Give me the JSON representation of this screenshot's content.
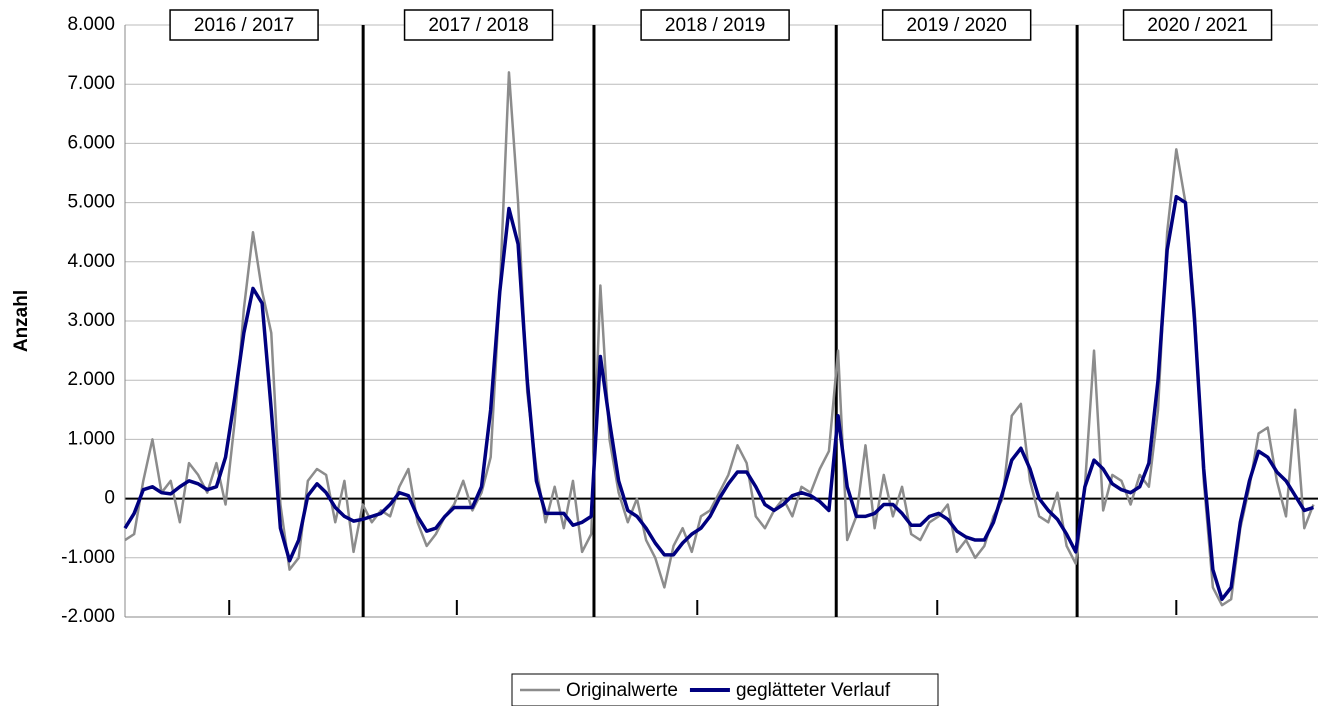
{
  "chart_data": {
    "type": "line",
    "y_label": "Anzahl",
    "seasons": [
      "2016 / 2017",
      "2017 / 2018",
      "2018 / 2019",
      "2019 / 2020",
      "2020 / 2021"
    ],
    "season_boundaries": [
      52.1,
      102.6,
      155.6,
      208.3
    ],
    "x": [
      0,
      2,
      4,
      6,
      8,
      10,
      12,
      14,
      16,
      18,
      20,
      22,
      24,
      26,
      28,
      30,
      32,
      34,
      36,
      38,
      40,
      42,
      44,
      46,
      48,
      50,
      52,
      54,
      56,
      58,
      60,
      62,
      64,
      66,
      68,
      70,
      72,
      74,
      76,
      78,
      80,
      82,
      84,
      86,
      88,
      90,
      92,
      94,
      96,
      98,
      100,
      102,
      104,
      106,
      108,
      110,
      112,
      114,
      116,
      118,
      120,
      122,
      124,
      126,
      128,
      130,
      132,
      134,
      136,
      138,
      140,
      142,
      144,
      146,
      148,
      150,
      152,
      154,
      156,
      158,
      160,
      162,
      164,
      166,
      168,
      170,
      172,
      174,
      176,
      178,
      180,
      182,
      184,
      186,
      188,
      190,
      192,
      194,
      196,
      198,
      200,
      202,
      204,
      206,
      208,
      210,
      212,
      214,
      216,
      218,
      220,
      222,
      224,
      226,
      228,
      230,
      232,
      234,
      236,
      238,
      240,
      242,
      244,
      246,
      248,
      250,
      252,
      254,
      256,
      258,
      260
    ],
    "xlim": [
      0,
      261
    ],
    "xticks": [
      22.8,
      72.6,
      125.2,
      177.7,
      230
    ],
    "ylim": [
      -2000,
      8000
    ],
    "yticks": [
      {
        "value": -2000,
        "label": "-2.000"
      },
      {
        "value": -1000,
        "label": "-1.000"
      },
      0,
      {
        "value": 1000,
        "label": "1.000"
      },
      {
        "value": 2000,
        "label": "2.000"
      },
      {
        "value": 3000,
        "label": "3.000"
      },
      {
        "value": 4000,
        "label": "4.000"
      },
      {
        "value": 5000,
        "label": "5.000"
      },
      {
        "value": 6000,
        "label": "6.000"
      },
      {
        "value": 7000,
        "label": "7.000"
      },
      {
        "value": 8000,
        "label": "8.000"
      }
    ],
    "grid": true,
    "legend": "bottom",
    "series": [
      {
        "name": "Originalwerte",
        "color": "#8c8c8c",
        "values": [
          -700,
          -600,
          300,
          1000,
          100,
          300,
          -400,
          600,
          400,
          100,
          600,
          -100,
          1300,
          3200,
          4500,
          3500,
          2800,
          -100,
          -1200,
          -1000,
          300,
          500,
          400,
          -400,
          300,
          -900,
          -100,
          -400,
          -200,
          -300,
          200,
          500,
          -400,
          -800,
          -600,
          -300,
          -100,
          300,
          -200,
          100,
          700,
          3500,
          7200,
          5000,
          1800,
          500,
          -400,
          200,
          -500,
          300,
          -900,
          -600,
          3600,
          1000,
          100,
          -400,
          0,
          -700,
          -1000,
          -1500,
          -800,
          -500,
          -900,
          -300,
          -200,
          100,
          400,
          900,
          600,
          -300,
          -500,
          -200,
          0,
          -300,
          200,
          100,
          500,
          800,
          2500,
          -700,
          -300,
          900,
          -500,
          400,
          -300,
          200,
          -600,
          -700,
          -400,
          -300,
          -100,
          -900,
          -700,
          -1000,
          -800,
          -300,
          0,
          1400,
          1600,
          300,
          -300,
          -400,
          100,
          -800,
          -1100,
          200,
          2500,
          -200,
          400,
          300,
          -100,
          400,
          200,
          1500,
          4500,
          5900,
          5000,
          3200,
          300,
          -1500,
          -1800,
          -1700,
          -500,
          200,
          1100,
          1200,
          300,
          -300,
          1500,
          -500,
          -100
        ]
      },
      {
        "name": "geglätteter Verlauf",
        "color": "#00007f",
        "values": [
          -500,
          -250,
          150,
          200,
          100,
          80,
          200,
          300,
          250,
          150,
          200,
          700,
          1700,
          2800,
          3550,
          3300,
          1500,
          -500,
          -1050,
          -700,
          50,
          250,
          100,
          -150,
          -300,
          -380,
          -350,
          -300,
          -250,
          -100,
          100,
          50,
          -300,
          -550,
          -500,
          -300,
          -150,
          -150,
          -150,
          200,
          1500,
          3500,
          4900,
          4300,
          2000,
          300,
          -250,
          -250,
          -250,
          -450,
          -400,
          -300,
          2400,
          1300,
          300,
          -200,
          -300,
          -500,
          -750,
          -950,
          -950,
          -750,
          -600,
          -500,
          -300,
          0,
          250,
          450,
          450,
          200,
          -100,
          -200,
          -100,
          50,
          100,
          50,
          -50,
          -200,
          1400,
          200,
          -300,
          -300,
          -250,
          -100,
          -100,
          -250,
          -450,
          -450,
          -300,
          -250,
          -350,
          -550,
          -650,
          -700,
          -700,
          -400,
          100,
          650,
          850,
          500,
          0,
          -200,
          -350,
          -600,
          -900,
          200,
          650,
          500,
          250,
          150,
          100,
          200,
          600,
          2000,
          4200,
          5100,
          5000,
          3000,
          500,
          -1200,
          -1700,
          -1500,
          -400,
          300,
          800,
          700,
          450,
          300,
          50,
          -200,
          -150
        ]
      }
    ]
  }
}
